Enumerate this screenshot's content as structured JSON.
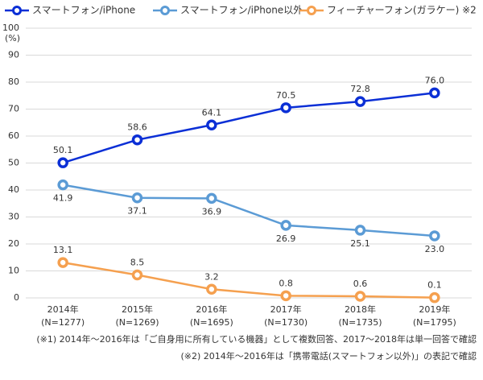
{
  "chart_data": {
    "type": "line",
    "categories": [
      "2014年",
      "2015年",
      "2016年",
      "2017年",
      "2018年",
      "2019年"
    ],
    "category_sublabels": [
      "(N=1277)",
      "(N=1269)",
      "(N=1695)",
      "(N=1730)",
      "(N=1735)",
      "(N=1795)"
    ],
    "y_unit": "(%)",
    "ylim": [
      0,
      100
    ],
    "yticks": [
      0,
      10,
      20,
      30,
      40,
      50,
      60,
      70,
      80,
      90,
      100
    ],
    "grid": true,
    "series": [
      {
        "name": "スマートフォン/iPhone",
        "color": "#0b2fd6",
        "values": [
          50.1,
          58.6,
          64.1,
          70.5,
          72.8,
          76.0
        ],
        "value_labels": [
          "50.1",
          "58.6",
          "64.1",
          "70.5",
          "72.8",
          "76.0"
        ],
        "label_position": "above"
      },
      {
        "name": "スマートフォン/iPhone以外",
        "color": "#5b9bd5",
        "values": [
          41.9,
          37.1,
          36.9,
          26.9,
          25.1,
          23.0
        ],
        "value_labels": [
          "41.9",
          "37.1",
          "36.9",
          "26.9",
          "25.1",
          "23.0"
        ],
        "label_position": "below"
      },
      {
        "name": "フィーチャーフォン(ガラケー) ※2",
        "color": "#f5a04f",
        "values": [
          13.1,
          8.5,
          3.2,
          0.8,
          0.6,
          0.1
        ],
        "value_labels": [
          "13.1",
          "8.5",
          "3.2",
          "0.8",
          "0.6",
          "0.1"
        ],
        "label_position": "above"
      }
    ],
    "notes": [
      "(※1) 2014年～2016年は「ご自身用に所有している機器」として複数回答、2017～2018年は単一回答で確認",
      "(※2) 2014年～2016年は「携帯電話(スマートフォン以外)」の表記で確認"
    ]
  }
}
